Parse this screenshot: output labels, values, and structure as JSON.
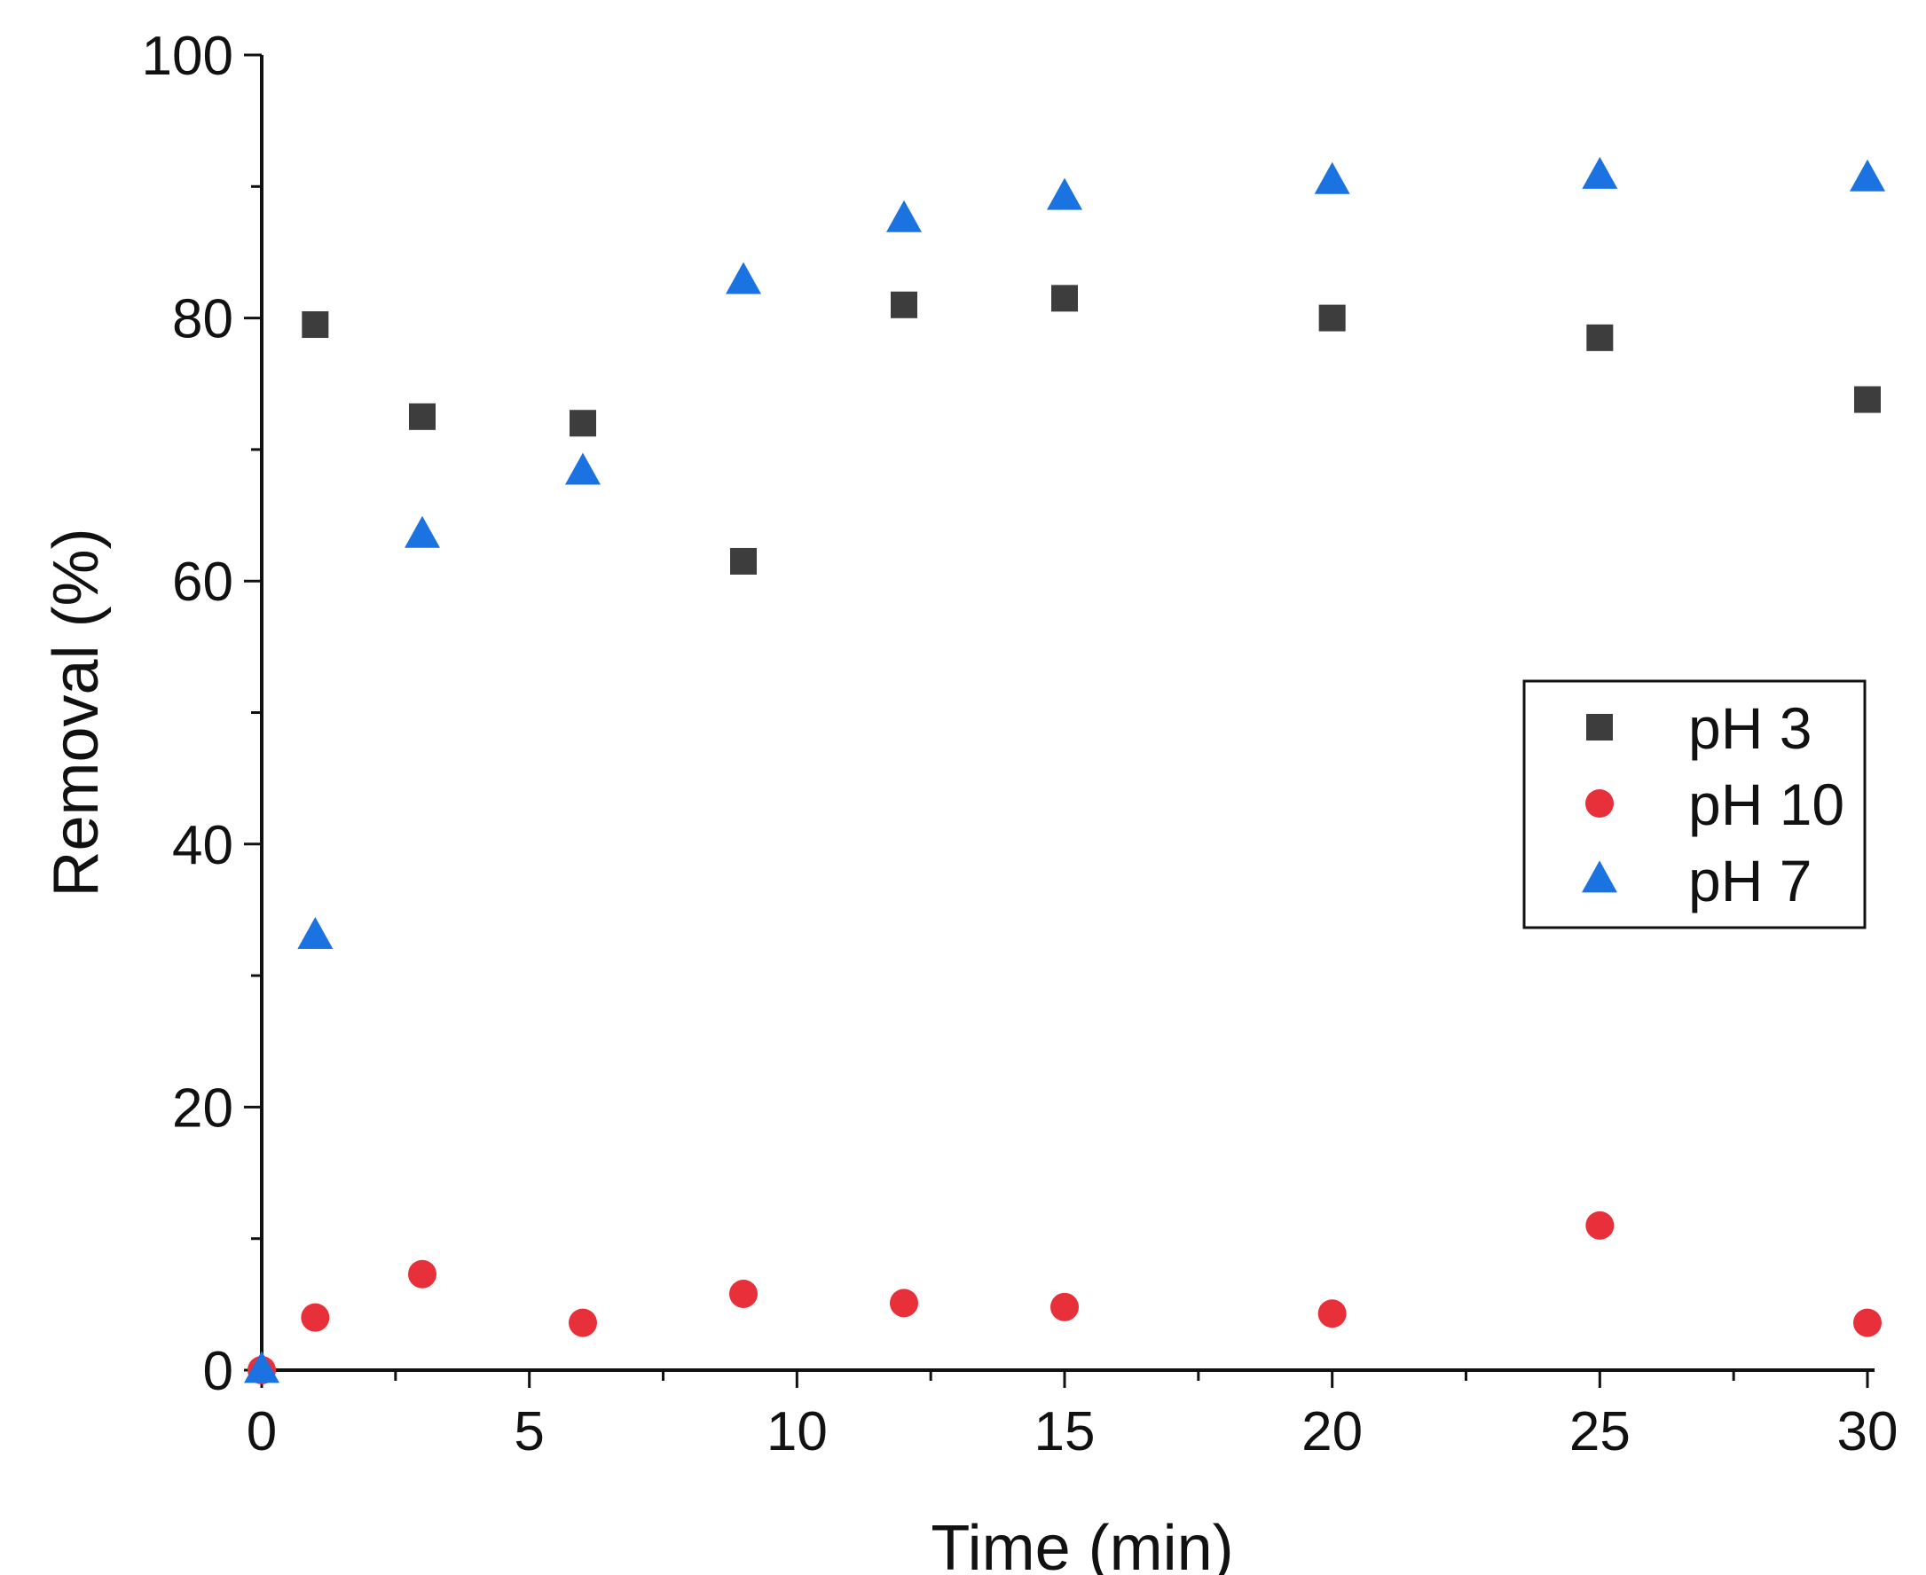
{
  "chart_data": {
    "type": "scatter",
    "title": "",
    "xlabel": "Time (min)",
    "ylabel": "Removal (%)",
    "xlim": [
      0,
      30
    ],
    "ylim": [
      0,
      100
    ],
    "xticks": [
      0,
      5,
      10,
      15,
      20,
      25,
      30
    ],
    "xtick_labels": [
      "0",
      "5",
      "10",
      "15",
      "20",
      "25",
      "30"
    ],
    "yticks": [
      0,
      20,
      40,
      60,
      80,
      100
    ],
    "ytick_labels": [
      "0",
      "20",
      "40",
      "60",
      "80",
      "100"
    ],
    "grid": false,
    "legend_position": "right-center",
    "series": [
      {
        "name": "pH 3",
        "marker": "square",
        "color": "#3d3d3d",
        "x": [
          1,
          3,
          6,
          9,
          12,
          15,
          20,
          25,
          30
        ],
        "y": [
          79.5,
          72.5,
          72.0,
          61.5,
          81.0,
          81.5,
          80.0,
          78.5,
          73.8
        ]
      },
      {
        "name": "pH 10",
        "marker": "circle",
        "color": "#e8303a",
        "x": [
          0,
          1,
          3,
          6,
          9,
          12,
          15,
          20,
          25,
          30
        ],
        "y": [
          0,
          4.0,
          7.3,
          3.6,
          5.8,
          5.1,
          4.8,
          4.3,
          11.0,
          3.6
        ]
      },
      {
        "name": "pH 7",
        "marker": "triangle",
        "color": "#1a73e0",
        "x": [
          0,
          1,
          3,
          6,
          9,
          12,
          15,
          20,
          25,
          30
        ],
        "y": [
          0,
          33.0,
          63.5,
          68.3,
          82.8,
          87.5,
          89.2,
          90.4,
          90.8,
          90.6
        ]
      }
    ]
  }
}
